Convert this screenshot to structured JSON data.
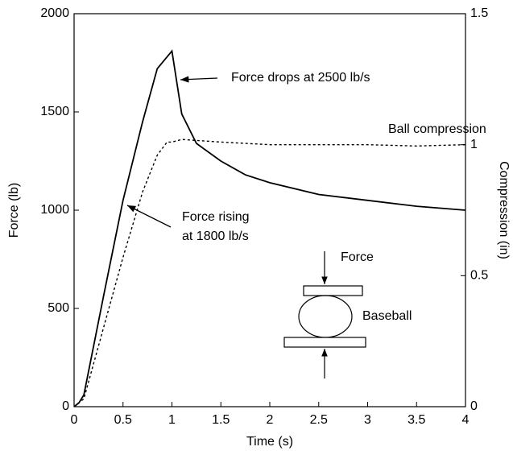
{
  "chart_data": {
    "type": "line",
    "x_label": "Time (s)",
    "y_label": "Force (lb)",
    "y2_label": "Compression (in)",
    "xlim": [
      0,
      4
    ],
    "xticks": [
      0,
      0.5,
      1,
      1.5,
      2,
      2.5,
      3,
      3.5,
      4
    ],
    "ylim": [
      0,
      2000
    ],
    "yticks": [
      0,
      500,
      1000,
      1500,
      2000
    ],
    "y2lim": [
      0,
      1.5
    ],
    "y2ticks": [
      0,
      0.5,
      1,
      1.5
    ],
    "series": [
      {
        "name": "Force",
        "color": "#000000",
        "line_style": "solid",
        "x": [
          0,
          0.05,
          0.1,
          0.3,
          0.5,
          0.7,
          0.85,
          1,
          1.1,
          1.25,
          1.5,
          1.75,
          2,
          2.5,
          3,
          3.5,
          4
        ],
        "values": [
          0,
          20,
          60,
          560,
          1050,
          1450,
          1720,
          1810,
          1490,
          1340,
          1250,
          1180,
          1140,
          1080,
          1050,
          1020,
          1000
        ]
      },
      {
        "name": "Ball compression",
        "color": "#000000",
        "line_style": "dashed",
        "axis": "y2",
        "x": [
          0,
          0.1,
          0.3,
          0.5,
          0.7,
          0.85,
          0.95,
          1,
          1.1,
          1.5,
          2,
          2.5,
          3,
          3.5,
          4
        ],
        "values": [
          0,
          0.03,
          0.3,
          0.57,
          0.82,
          0.96,
          1.01,
          1.01,
          1.02,
          1.01,
          1.0,
          1.0,
          1.0,
          0.995,
          1.0
        ]
      }
    ],
    "annotations": [
      "Force drops at 2500 lb/s",
      "Force rising",
      "at 1800 lb/s",
      "Force",
      "Baseball"
    ]
  }
}
